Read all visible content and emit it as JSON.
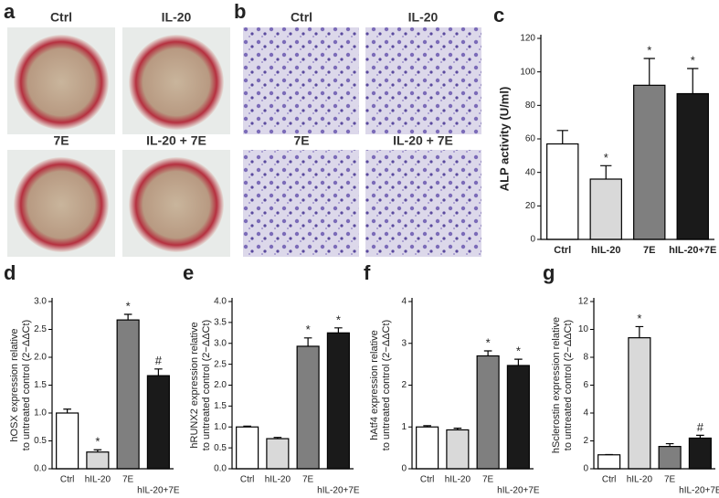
{
  "panel_labels": [
    "a",
    "b",
    "c",
    "d",
    "e",
    "f",
    "g"
  ],
  "photo_captions": {
    "a": [
      "Ctrl",
      "IL-20",
      "7E",
      "IL-20 + 7E"
    ],
    "b": [
      "Ctrl",
      "IL-20",
      "7E",
      "IL-20 + 7E"
    ]
  },
  "chart_data": [
    {
      "type": "bar",
      "ylabel": [
        "ALP activity (U/ml)"
      ],
      "categories": [
        "Ctrl",
        "hIL-20",
        "7E",
        "hIL-20+7E"
      ],
      "values": [
        57,
        36,
        92,
        87
      ],
      "errors": [
        8,
        8,
        16,
        15
      ],
      "annotations": [
        null,
        "*",
        "*",
        "*"
      ],
      "colors": [
        "#ffffff",
        "#d9d9d9",
        "#7f7f7f",
        "#1a1a1a"
      ],
      "ylim": [
        0,
        120
      ],
      "yticks": [
        0,
        20,
        40,
        60,
        80,
        100,
        120
      ]
    },
    {
      "type": "bar",
      "ylabel": [
        "hOSX expression relative",
        "to untreated control (2−ΔΔCt)"
      ],
      "categories": [
        "Ctrl",
        "hIL-20",
        "7E",
        "hIL-20+7E"
      ],
      "values": [
        1.0,
        0.3,
        2.67,
        1.67
      ],
      "errors": [
        0.07,
        0.04,
        0.1,
        0.12
      ],
      "annotations": [
        null,
        "*",
        "*",
        "#"
      ],
      "colors": [
        "#ffffff",
        "#d9d9d9",
        "#7f7f7f",
        "#1a1a1a"
      ],
      "ylim": [
        0,
        3.0
      ],
      "yticks": [
        {
          "value": 0,
          "label": "0.0"
        },
        {
          "value": 0.5,
          "label": "0.5"
        },
        {
          "value": 1,
          "label": "1.0"
        },
        {
          "value": 1.5,
          "label": "1.5"
        },
        {
          "value": 2,
          "label": "2.0"
        },
        {
          "value": 2.5,
          "label": "2.5"
        },
        {
          "value": 3,
          "label": "3.0"
        }
      ]
    },
    {
      "type": "bar",
      "ylabel": [
        "hRUNX2 expression relative",
        "to untreated control (2−ΔΔCt)"
      ],
      "categories": [
        "Ctrl",
        "hIL-20",
        "7E",
        "hIL-20+7E"
      ],
      "values": [
        1.0,
        0.72,
        2.93,
        3.25
      ],
      "errors": [
        0.02,
        0.03,
        0.2,
        0.12
      ],
      "annotations": [
        null,
        null,
        "*",
        "*"
      ],
      "colors": [
        "#ffffff",
        "#d9d9d9",
        "#7f7f7f",
        "#1a1a1a"
      ],
      "ylim": [
        0,
        4.0
      ],
      "yticks": [
        {
          "value": 0,
          "label": "0.0"
        },
        {
          "value": 0.5,
          "label": "0.5"
        },
        {
          "value": 1,
          "label": "1.0"
        },
        {
          "value": 1.5,
          "label": "1.5"
        },
        {
          "value": 2,
          "label": "2.0"
        },
        {
          "value": 2.5,
          "label": "2.5"
        },
        {
          "value": 3,
          "label": "3.0"
        },
        {
          "value": 3.5,
          "label": "3.5"
        },
        {
          "value": 4,
          "label": "4.0"
        }
      ]
    },
    {
      "type": "bar",
      "ylabel": [
        "hAtf4 expression relative",
        "to untreated control (2−ΔΔCt)"
      ],
      "categories": [
        "Ctrl",
        "hIL-20",
        "7E",
        "hIL-20+7E"
      ],
      "values": [
        1.0,
        0.93,
        2.7,
        2.47
      ],
      "errors": [
        0.03,
        0.04,
        0.12,
        0.15
      ],
      "annotations": [
        null,
        null,
        "*",
        "*"
      ],
      "colors": [
        "#ffffff",
        "#d9d9d9",
        "#7f7f7f",
        "#1a1a1a"
      ],
      "ylim": [
        0,
        4
      ],
      "yticks": [
        0,
        1,
        2,
        3,
        4
      ]
    },
    {
      "type": "bar",
      "ylabel": [
        "hSclerostin expression relative",
        "to untreated control (2−ΔΔCt)"
      ],
      "categories": [
        "Ctrl",
        "hIL-20",
        "7E",
        "hIL-20+7E"
      ],
      "values": [
        1.0,
        9.4,
        1.6,
        2.2
      ],
      "errors": [
        0.02,
        0.8,
        0.2,
        0.2
      ],
      "annotations": [
        null,
        "*",
        null,
        "#"
      ],
      "colors": [
        "#ffffff",
        "#d9d9d9",
        "#7f7f7f",
        "#1a1a1a"
      ],
      "ylim": [
        0,
        12
      ],
      "yticks": [
        0,
        2,
        4,
        6,
        8,
        10,
        12
      ]
    }
  ]
}
